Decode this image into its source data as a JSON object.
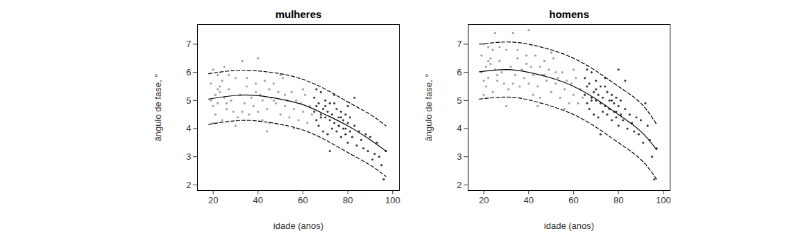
{
  "chart_data": [
    {
      "type": "scatter",
      "title": "mulheres",
      "x_label": "idade (anos)",
      "y_label": "ângulo de fase, °",
      "xlim": [
        13,
        103
      ],
      "xticks": [
        20,
        40,
        60,
        80,
        100
      ],
      "ylim": [
        1.8,
        7.7
      ],
      "yticks": [
        2,
        3,
        4,
        5,
        6,
        7
      ],
      "series": [
        {
          "type": "scatter",
          "color": "#a0a0a0",
          "marker": "circle",
          "x": [
            19,
            19,
            20,
            20,
            21,
            21,
            22,
            22,
            23,
            24,
            24,
            25,
            25,
            26,
            27,
            28,
            29,
            30,
            31,
            32,
            33,
            34,
            35,
            36,
            37,
            38,
            39,
            40,
            40,
            41,
            42,
            43,
            44,
            45,
            45,
            46,
            47,
            48,
            49,
            50,
            51,
            52,
            53,
            54,
            55,
            56,
            57,
            58,
            59,
            60,
            61,
            62,
            63,
            64,
            20,
            23,
            27,
            30,
            35,
            42,
            47,
            52,
            56,
            60,
            22,
            26,
            33,
            39,
            44,
            50
          ],
          "values": [
            5.0,
            5.6,
            4.8,
            6.1,
            5.2,
            4.5,
            5.9,
            4.9,
            5.3,
            4.3,
            5.7,
            5.1,
            6.2,
            4.7,
            5.4,
            5.0,
            4.6,
            5.8,
            4.4,
            5.2,
            6.4,
            4.9,
            5.5,
            4.5,
            5.1,
            4.8,
            5.3,
            6.5,
            4.6,
            5.2,
            5.0,
            5.7,
            4.7,
            5.4,
            4.2,
            5.1,
            5.6,
            4.9,
            5.3,
            4.5,
            5.8,
            4.8,
            5.0,
            4.4,
            5.3,
            4.7,
            5.0,
            4.3,
            4.9,
            4.6,
            5.2,
            4.2,
            4.8,
            4.5,
            4.2,
            5.5,
            5.9,
            4.1,
            5.8,
            4.3,
            5.0,
            5.2,
            4.0,
            5.4,
            5.4,
            4.9,
            4.6,
            5.6,
            3.9,
            5.9
          ]
        },
        {
          "type": "scatter",
          "color": "#3a3a3a",
          "marker": "circle",
          "x": [
            65,
            65,
            66,
            66,
            67,
            67,
            68,
            68,
            69,
            69,
            70,
            70,
            71,
            71,
            72,
            72,
            73,
            73,
            74,
            74,
            75,
            75,
            76,
            76,
            77,
            77,
            78,
            78,
            79,
            79,
            80,
            80,
            81,
            81,
            82,
            83,
            84,
            85,
            86,
            87,
            88,
            89,
            90,
            91,
            92,
            93,
            94,
            95,
            96,
            97,
            66,
            70,
            74,
            77,
            79,
            72,
            76,
            80,
            68,
            83
          ],
          "values": [
            4.6,
            5.1,
            4.3,
            4.8,
            4.9,
            4.1,
            5.3,
            4.5,
            4.7,
            3.9,
            4.4,
            5.0,
            4.6,
            3.8,
            4.9,
            4.3,
            4.5,
            4.0,
            5.2,
            4.2,
            4.7,
            3.9,
            4.4,
            4.1,
            4.6,
            3.7,
            4.3,
            4.0,
            4.5,
            3.8,
            4.2,
            3.5,
            4.4,
            3.9,
            3.7,
            4.1,
            3.4,
            3.9,
            3.6,
            3.3,
            3.8,
            3.2,
            3.7,
            2.9,
            3.1,
            3.5,
            3.0,
            2.7,
            2.2,
            3.2,
            5.4,
            4.8,
            4.9,
            4.4,
            4.0,
            3.2,
            4.1,
            4.8,
            4.4,
            5.1
          ]
        },
        {
          "type": "line",
          "color": "#000000",
          "line_style": "solid",
          "x": [
            18,
            30,
            40,
            50,
            60,
            70,
            80,
            90,
            97
          ],
          "values": [
            5.05,
            5.18,
            5.17,
            5.05,
            4.85,
            4.5,
            4.1,
            3.6,
            3.2
          ]
        },
        {
          "type": "line",
          "color": "#000000",
          "line_style": "dashed",
          "x": [
            18,
            30,
            40,
            50,
            60,
            70,
            80,
            90,
            97
          ],
          "values": [
            5.95,
            6.07,
            6.05,
            5.95,
            5.75,
            5.4,
            4.95,
            4.5,
            4.1
          ]
        },
        {
          "type": "line",
          "color": "#000000",
          "line_style": "dashed",
          "x": [
            18,
            30,
            40,
            50,
            60,
            70,
            80,
            90,
            97
          ],
          "values": [
            4.15,
            4.28,
            4.27,
            4.15,
            3.95,
            3.6,
            3.15,
            2.7,
            2.3
          ]
        }
      ]
    },
    {
      "type": "scatter",
      "title": "homens",
      "x_label": "idade (anos)",
      "y_label": "ângulo de fase, °",
      "xlim": [
        13,
        103
      ],
      "xticks": [
        20,
        40,
        60,
        80,
        100
      ],
      "ylim": [
        1.8,
        7.7
      ],
      "yticks": [
        2,
        3,
        4,
        5,
        6,
        7
      ],
      "series": [
        {
          "type": "scatter",
          "color": "#a0a0a0",
          "marker": "circle",
          "x": [
            19,
            19,
            20,
            20,
            21,
            21,
            22,
            22,
            23,
            24,
            24,
            25,
            25,
            26,
            27,
            28,
            29,
            30,
            31,
            32,
            33,
            34,
            35,
            36,
            37,
            38,
            39,
            40,
            40,
            41,
            42,
            43,
            44,
            45,
            45,
            46,
            47,
            48,
            49,
            50,
            51,
            52,
            53,
            54,
            55,
            56,
            57,
            58,
            59,
            60,
            61,
            62,
            63,
            64,
            20,
            23,
            27,
            30,
            35,
            42,
            47,
            52,
            56,
            60,
            22,
            26,
            33,
            39,
            44,
            50
          ],
          "values": [
            6.0,
            6.6,
            5.7,
            7.0,
            6.2,
            5.5,
            6.9,
            5.8,
            6.3,
            5.3,
            6.8,
            6.1,
            7.4,
            5.7,
            6.4,
            6.0,
            5.6,
            6.8,
            5.4,
            6.2,
            7.4,
            5.9,
            6.5,
            5.5,
            6.1,
            5.8,
            6.3,
            7.5,
            5.6,
            6.2,
            5.9,
            6.6,
            5.5,
            6.2,
            5.1,
            5.9,
            6.4,
            5.7,
            6.1,
            5.3,
            6.5,
            5.6,
            5.8,
            5.1,
            6.0,
            5.4,
            5.7,
            4.9,
            5.6,
            5.2,
            5.8,
            4.9,
            5.4,
            5.1,
            5.2,
            6.5,
            6.9,
            4.8,
            6.8,
            5.2,
            5.9,
            6.0,
            4.7,
            6.1,
            6.4,
            5.9,
            5.6,
            6.6,
            4.8,
            6.7
          ]
        },
        {
          "type": "scatter",
          "color": "#3a3a3a",
          "marker": "circle",
          "x": [
            65,
            65,
            66,
            66,
            67,
            67,
            68,
            68,
            69,
            69,
            70,
            70,
            71,
            71,
            72,
            72,
            73,
            73,
            74,
            74,
            75,
            75,
            76,
            76,
            77,
            77,
            78,
            78,
            79,
            79,
            80,
            80,
            81,
            81,
            82,
            83,
            84,
            85,
            86,
            87,
            88,
            89,
            90,
            91,
            92,
            93,
            94,
            95,
            96,
            97,
            66,
            70,
            74,
            77,
            79,
            72,
            76,
            80,
            68,
            83
          ],
          "values": [
            5.2,
            5.8,
            4.9,
            5.5,
            5.6,
            4.7,
            6.0,
            5.1,
            5.3,
            4.5,
            5.0,
            5.7,
            5.2,
            4.4,
            5.5,
            4.9,
            5.1,
            4.6,
            5.8,
            4.8,
            5.3,
            4.5,
            5.0,
            4.7,
            5.2,
            4.3,
            4.9,
            4.6,
            5.1,
            4.4,
            4.8,
            4.1,
            5.0,
            4.5,
            4.3,
            4.7,
            4.0,
            4.5,
            4.2,
            3.9,
            4.4,
            3.8,
            4.3,
            3.5,
            4.9,
            4.1,
            3.6,
            3.0,
            2.2,
            3.3,
            6.1,
            5.4,
            5.5,
            5.0,
            4.6,
            3.8,
            4.7,
            6.1,
            5.0,
            5.7
          ]
        },
        {
          "type": "line",
          "color": "#000000",
          "line_style": "solid",
          "x": [
            18,
            30,
            40,
            50,
            60,
            70,
            80,
            90,
            97
          ],
          "values": [
            6.02,
            6.1,
            6.0,
            5.8,
            5.5,
            5.05,
            4.5,
            3.9,
            3.25
          ]
        },
        {
          "type": "line",
          "color": "#000000",
          "line_style": "dashed",
          "x": [
            18,
            30,
            40,
            50,
            60,
            70,
            80,
            90,
            97
          ],
          "values": [
            7.0,
            7.08,
            7.0,
            6.8,
            6.5,
            6.05,
            5.5,
            4.9,
            4.15
          ]
        },
        {
          "type": "line",
          "color": "#000000",
          "line_style": "dashed",
          "x": [
            18,
            30,
            40,
            50,
            60,
            70,
            80,
            90,
            97
          ],
          "values": [
            5.05,
            5.12,
            5.02,
            4.8,
            4.5,
            4.05,
            3.5,
            2.9,
            2.2
          ]
        }
      ]
    }
  ]
}
